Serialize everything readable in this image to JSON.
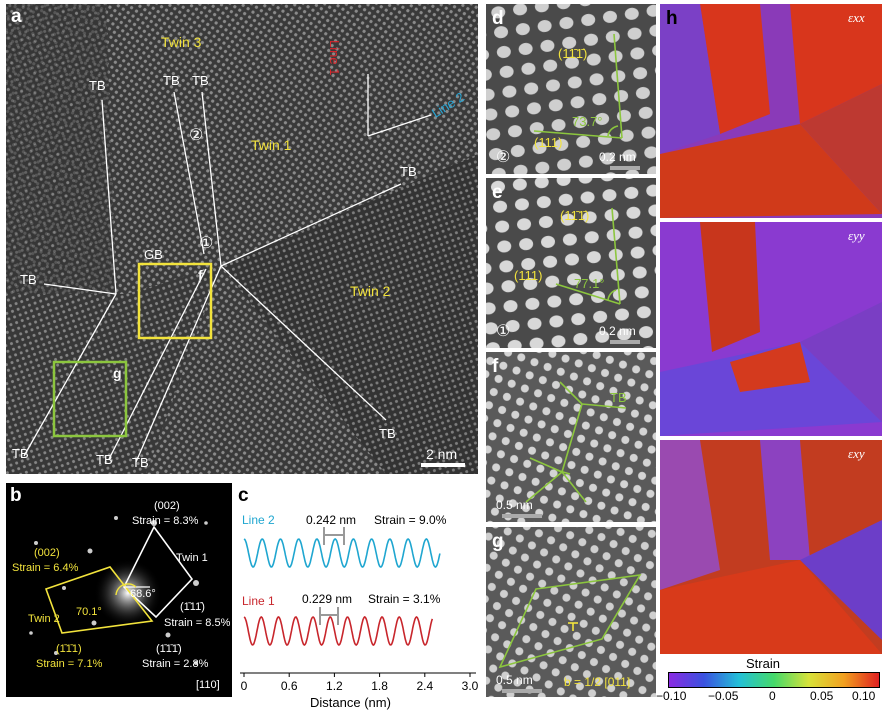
{
  "panels": {
    "a": {
      "label": "a",
      "twin3": "Twin 3",
      "twin1": "Twin 1",
      "twin2": "Twin 2",
      "tb": "TB",
      "gb": "GB",
      "line1": "Line 1",
      "line2": "Line 2",
      "circ1": "①",
      "circ2": "②",
      "box_f": "f",
      "box_g": "g",
      "scale": "2 nm"
    },
    "b": {
      "label": "b",
      "spot_002_white": "(002)",
      "strain_white_002": "Strain = 8.3%",
      "twin1": "Twin 1",
      "spot_002_yellow": "(002)",
      "strain_yellow_002": "Strain = 6.4%",
      "twin2": "Twin 2",
      "angle_white": "68.6°",
      "angle_yellow": "70.1°",
      "spot_1b11_white": "(1̄11̄)",
      "strain_1b11_white": "Strain = 8.5%",
      "spot_11b1_yellow": "(1̄1̄1)",
      "strain_11b1_yellow": "Strain = 7.1%",
      "spot_1b1b1_white": "(1̄1̄1̄)",
      "strain_1b1b1_white": "Strain = 2.8%",
      "zone": "[110]"
    },
    "c": {
      "label": "c",
      "line2": "Line 2",
      "line2_spacing": "0.242 nm",
      "line2_strain": "Strain = 9.0%",
      "line1": "Line 1",
      "line1_spacing": "0.229 nm",
      "line1_strain": "Strain = 3.1%",
      "xlabel": "Distance (nm)",
      "xticks": [
        "0",
        "0.6",
        "1.2",
        "1.8",
        "2.4",
        "3.0"
      ]
    },
    "d": {
      "label": "d",
      "plane_top": "(11̄1̄)",
      "plane_bottom": "(111)",
      "angle": "73.7°",
      "circ": "②",
      "scale": "0.2 nm"
    },
    "e": {
      "label": "e",
      "plane_top": "(11̄1̄)",
      "plane_left": "(111)",
      "angle": "77.1°",
      "circ": "①",
      "scale": "0.2 nm"
    },
    "f": {
      "label": "f",
      "tb": "TB",
      "scale": "0.5 nm"
    },
    "g": {
      "label": "g",
      "burgers": "b = 1/2 [011]",
      "scale": "0.5 nm"
    },
    "h": {
      "label": "h",
      "exx": "εxx",
      "eyy": "εyy",
      "exy": "εxy",
      "colorbar_title": "Strain",
      "colorbar_ticks": [
        "−0.10",
        "−0.05",
        "0",
        "0.05",
        "0.10"
      ]
    }
  },
  "chart_data": {
    "type": "line",
    "title": "",
    "xlabel": "Distance (nm)",
    "ylabel": "",
    "xlim": [
      0,
      3.0
    ],
    "series": [
      {
        "name": "Line 2",
        "color": "#1fa6d0",
        "period_nm": 0.242,
        "strain_percent": 9.0,
        "x_start": 0,
        "x_end": 2.6
      },
      {
        "name": "Line 1",
        "color": "#c8262c",
        "period_nm": 0.229,
        "strain_percent": 3.1,
        "x_start": 0,
        "x_end": 2.5
      }
    ]
  }
}
